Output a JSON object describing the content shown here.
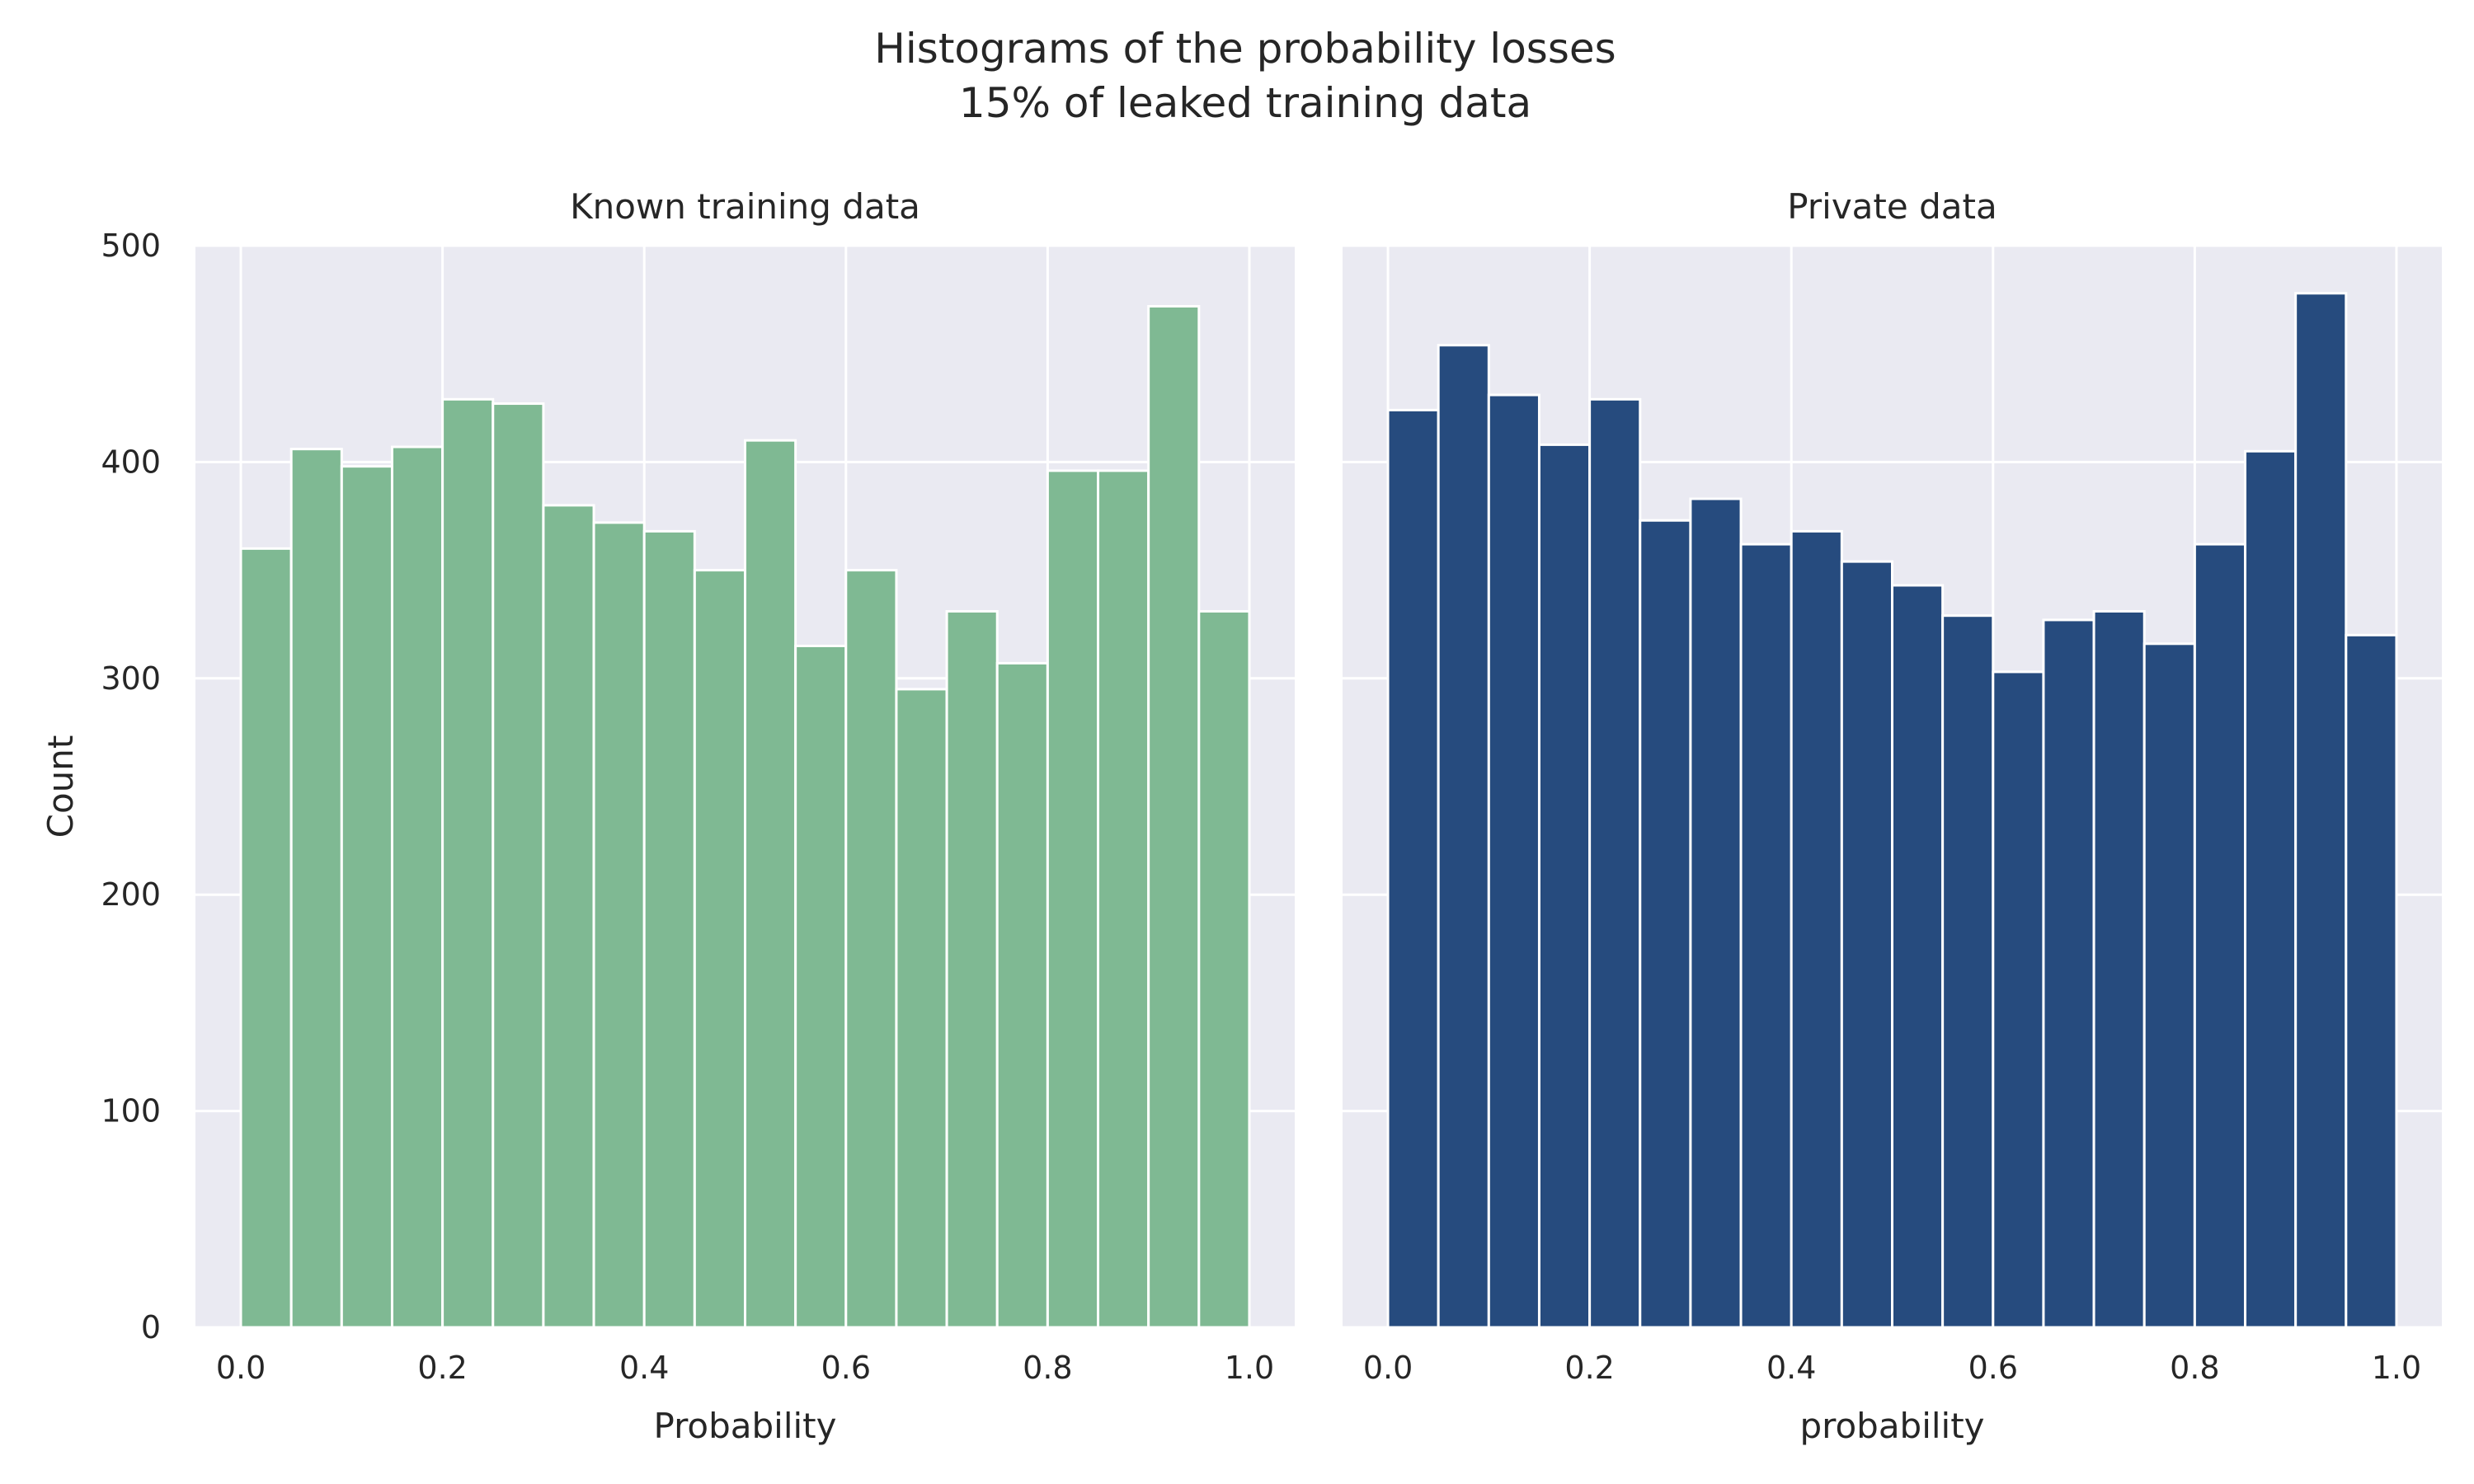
{
  "figure": {
    "suptitle_line1": "Histograms of the probability losses",
    "suptitle_line2": "15% of leaked training data"
  },
  "style": {
    "axes_background": "#eaeaf2",
    "grid_color": "#ffffff",
    "text_color": "#262626"
  },
  "chart_data": [
    {
      "type": "bar",
      "histogram": true,
      "title": "Known training data",
      "xlabel": "Probability",
      "ylabel": "Count",
      "color": "#7fb993",
      "bin_edges": [
        0.0,
        0.05,
        0.1,
        0.15,
        0.2,
        0.25,
        0.3,
        0.35,
        0.4,
        0.45,
        0.5,
        0.55,
        0.6,
        0.65,
        0.7,
        0.75,
        0.8,
        0.85,
        0.9,
        0.95,
        1.0
      ],
      "values": [
        360,
        406,
        398,
        407,
        429,
        427,
        380,
        372,
        368,
        350,
        410,
        315,
        350,
        295,
        331,
        307,
        396,
        396,
        472,
        331
      ],
      "xlim": [
        -0.045,
        1.045
      ],
      "ylim": [
        0,
        500
      ],
      "xticks": [
        "0.0",
        "0.2",
        "0.4",
        "0.6",
        "0.8",
        "1.0"
      ],
      "yticks": [
        "0",
        "100",
        "200",
        "300",
        "400",
        "500"
      ],
      "grid": true
    },
    {
      "type": "bar",
      "histogram": true,
      "title": "Private data",
      "xlabel": "probability",
      "ylabel": "",
      "color": "#264b7e",
      "bin_edges": [
        0.0,
        0.05,
        0.1,
        0.15,
        0.2,
        0.25,
        0.3,
        0.35,
        0.4,
        0.45,
        0.5,
        0.55,
        0.6,
        0.65,
        0.7,
        0.75,
        0.8,
        0.85,
        0.9,
        0.95,
        1.0
      ],
      "values": [
        424,
        454,
        431,
        408,
        429,
        373,
        383,
        362,
        368,
        354,
        343,
        329,
        303,
        327,
        331,
        316,
        362,
        405,
        478,
        320
      ],
      "xlim": [
        -0.045,
        1.045
      ],
      "ylim": [
        0,
        500
      ],
      "xticks": [
        "0.0",
        "0.2",
        "0.4",
        "0.6",
        "0.8",
        "1.0"
      ],
      "yticks": [],
      "grid": true
    }
  ]
}
